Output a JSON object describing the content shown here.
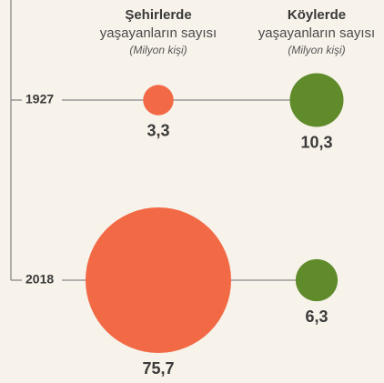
{
  "chart_data": {
    "type": "bubble",
    "categories": [
      "1927",
      "2018"
    ],
    "series_subtitle": "yaşayanların sayısı",
    "unit": "(Milyon kişi)",
    "series": [
      {
        "name": "Şehirlerde",
        "color": "#f26a45",
        "values": [
          3.3,
          75.7
        ],
        "value_labels": [
          "3,3",
          "75,7"
        ]
      },
      {
        "name": "Köylerde",
        "color": "#5f8b2b",
        "values": [
          10.3,
          6.3
        ],
        "value_labels": [
          "10,3",
          "6,3"
        ]
      }
    ]
  }
}
